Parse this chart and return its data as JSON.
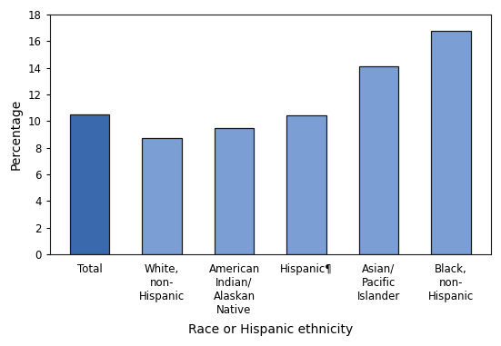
{
  "categories": [
    "Total",
    "White,\nnon-\nHispanic",
    "American\nIndian/\nAlaskan\nNative",
    "Hispanic¶",
    "Asian/\nPacific\nIslander",
    "Black,\nnon-\nHispanic"
  ],
  "values": [
    10.5,
    8.7,
    9.5,
    10.4,
    14.1,
    16.8
  ],
  "bar_colors": [
    "#3a6aad",
    "#7b9fd4",
    "#7b9fd4",
    "#7b9fd4",
    "#7b9fd4",
    "#7b9fd4"
  ],
  "bar_edgecolor": "#1a1a1a",
  "ylabel": "Percentage",
  "xlabel": "Race or Hispanic ethnicity",
  "ylim": [
    0,
    18
  ],
  "yticks": [
    0,
    2,
    4,
    6,
    8,
    10,
    12,
    14,
    16,
    18
  ],
  "background_color": "#ffffff",
  "ylabel_fontsize": 10,
  "xlabel_fontsize": 10,
  "tick_fontsize": 8.5,
  "bar_width": 0.55
}
